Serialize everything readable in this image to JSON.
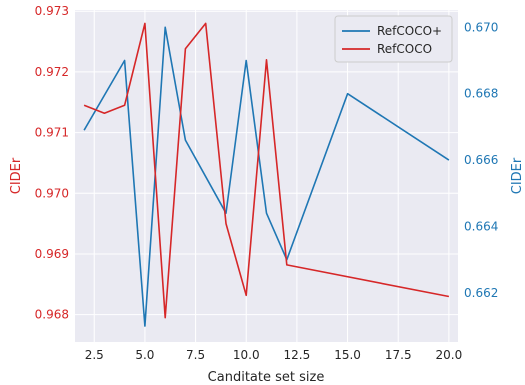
{
  "chart_data": {
    "type": "line",
    "xlabel": "Canditate set size",
    "ylabel_left": "CIDEr",
    "ylabel_right": "CIDEr",
    "xlim": [
      1.55,
      20.45
    ],
    "ylim_left": [
      0.96755,
      0.97302
    ],
    "ylim_right": [
      0.66052,
      0.67052
    ],
    "x_ticks": [
      "2.5",
      "5.0",
      "7.5",
      "10.0",
      "12.5",
      "15.0",
      "17.5",
      "20.0"
    ],
    "y_ticks_left": [
      "0.968",
      "0.969",
      "0.970",
      "0.971",
      "0.972",
      "0.973"
    ],
    "y_ticks_right": [
      "0.662",
      "0.664",
      "0.666",
      "0.668",
      "0.670"
    ],
    "grid": true,
    "legend_position": "top-right",
    "colors": {
      "left_axis": "#d62728",
      "right_axis": "#1f77b4",
      "background": "#eaeaf2",
      "grid": "#ffffff"
    },
    "series": [
      {
        "name": "RefCOCO+",
        "axis": "right",
        "color": "#1f77b4",
        "x": [
          2,
          4,
          5,
          6,
          7,
          9,
          10,
          11,
          12,
          15,
          20
        ],
        "y": [
          0.6669,
          0.669,
          0.661,
          0.67,
          0.6666,
          0.6644,
          0.669,
          0.6644,
          0.663,
          0.668,
          0.666
        ]
      },
      {
        "name": "RefCOCO",
        "axis": "left",
        "color": "#d62728",
        "x": [
          2,
          3,
          4,
          5,
          6,
          7,
          8,
          9,
          10,
          11,
          12,
          20
        ],
        "y": [
          0.97145,
          0.97132,
          0.97145,
          0.9728,
          0.96795,
          0.97238,
          0.9728,
          0.9695,
          0.96832,
          0.9722,
          0.96882,
          0.9683
        ]
      }
    ]
  }
}
